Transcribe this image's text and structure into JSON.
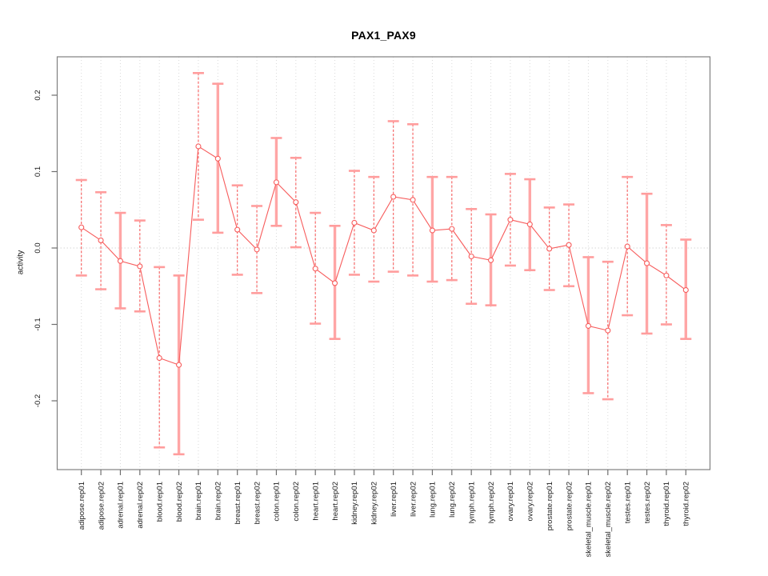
{
  "chart_data": {
    "type": "line",
    "subtype": "point-estimates-with-error-bars",
    "title": "PAX1_PAX9",
    "xlabel": "",
    "ylabel": "activity",
    "ylim": [
      -0.29,
      0.25
    ],
    "grid": "vertical dotted gridline at every category; horizontal dotted line at 0 only",
    "legend": "none",
    "yticks": [
      {
        "value": 0.2,
        "label": "0.2"
      },
      {
        "value": 0.1,
        "label": "0.1"
      },
      {
        "value": 0.0,
        "label": "0.0"
      },
      {
        "value": -0.1,
        "label": "-0.1"
      },
      {
        "value": -0.2,
        "label": "-0.2"
      }
    ],
    "categories": [
      "adipose.rep01",
      "adipose.rep02",
      "adrenal.rep01",
      "adrenal.rep02",
      "blood.rep01",
      "blood.rep02",
      "brain.rep01",
      "brain.rep02",
      "breast.rep01",
      "breast.rep02",
      "colon.rep01",
      "colon.rep02",
      "heart.rep01",
      "heart.rep02",
      "kidney.rep01",
      "kidney.rep02",
      "liver.rep01",
      "liver.rep02",
      "lung.rep01",
      "lung.rep02",
      "lymph.rep01",
      "lymph.rep02",
      "ovary.rep01",
      "ovary.rep02",
      "prostate.rep01",
      "prostate.rep02",
      "skeletal_muscle.rep01",
      "skeletal_muscle.rep02",
      "testes.rep01",
      "testes.rep02",
      "thyroid.rep01",
      "thyroid.rep02"
    ],
    "points": [
      {
        "category": "adipose.rep01",
        "value": 0.027,
        "lower": -0.036,
        "upper": 0.089,
        "bar_style": "dashed"
      },
      {
        "category": "adipose.rep02",
        "value": 0.01,
        "lower": -0.054,
        "upper": 0.073,
        "bar_style": "dashed"
      },
      {
        "category": "adrenal.rep01",
        "value": -0.017,
        "lower": -0.079,
        "upper": 0.046,
        "bar_style": "solid"
      },
      {
        "category": "adrenal.rep02",
        "value": -0.024,
        "lower": -0.083,
        "upper": 0.036,
        "bar_style": "dashed"
      },
      {
        "category": "blood.rep01",
        "value": -0.144,
        "lower": -0.261,
        "upper": -0.025,
        "bar_style": "dashed"
      },
      {
        "category": "blood.rep02",
        "value": -0.153,
        "lower": -0.27,
        "upper": -0.036,
        "bar_style": "solid"
      },
      {
        "category": "brain.rep01",
        "value": 0.133,
        "lower": 0.037,
        "upper": 0.229,
        "bar_style": "dashed"
      },
      {
        "category": "brain.rep02",
        "value": 0.117,
        "lower": 0.02,
        "upper": 0.215,
        "bar_style": "solid"
      },
      {
        "category": "breast.rep01",
        "value": 0.024,
        "lower": -0.035,
        "upper": 0.082,
        "bar_style": "dashed"
      },
      {
        "category": "breast.rep02",
        "value": -0.002,
        "lower": -0.059,
        "upper": 0.055,
        "bar_style": "dashed"
      },
      {
        "category": "colon.rep01",
        "value": 0.086,
        "lower": 0.029,
        "upper": 0.144,
        "bar_style": "solid"
      },
      {
        "category": "colon.rep02",
        "value": 0.06,
        "lower": 0.001,
        "upper": 0.118,
        "bar_style": "dashed"
      },
      {
        "category": "heart.rep01",
        "value": -0.027,
        "lower": -0.099,
        "upper": 0.046,
        "bar_style": "dashed"
      },
      {
        "category": "heart.rep02",
        "value": -0.046,
        "lower": -0.119,
        "upper": 0.029,
        "bar_style": "solid"
      },
      {
        "category": "kidney.rep01",
        "value": 0.033,
        "lower": -0.035,
        "upper": 0.101,
        "bar_style": "dashed"
      },
      {
        "category": "kidney.rep02",
        "value": 0.023,
        "lower": -0.044,
        "upper": 0.093,
        "bar_style": "dashed"
      },
      {
        "category": "liver.rep01",
        "value": 0.067,
        "lower": -0.031,
        "upper": 0.166,
        "bar_style": "dashed"
      },
      {
        "category": "liver.rep02",
        "value": 0.063,
        "lower": -0.036,
        "upper": 0.162,
        "bar_style": "dashed"
      },
      {
        "category": "lung.rep01",
        "value": 0.023,
        "lower": -0.044,
        "upper": 0.093,
        "bar_style": "solid"
      },
      {
        "category": "lung.rep02",
        "value": 0.025,
        "lower": -0.042,
        "upper": 0.093,
        "bar_style": "dashed"
      },
      {
        "category": "lymph.rep01",
        "value": -0.011,
        "lower": -0.073,
        "upper": 0.051,
        "bar_style": "dashed"
      },
      {
        "category": "lymph.rep02",
        "value": -0.016,
        "lower": -0.075,
        "upper": 0.044,
        "bar_style": "solid"
      },
      {
        "category": "ovary.rep01",
        "value": 0.037,
        "lower": -0.023,
        "upper": 0.097,
        "bar_style": "dashed"
      },
      {
        "category": "ovary.rep02",
        "value": 0.031,
        "lower": -0.029,
        "upper": 0.09,
        "bar_style": "solid"
      },
      {
        "category": "prostate.rep01",
        "value": -0.001,
        "lower": -0.055,
        "upper": 0.053,
        "bar_style": "dashed"
      },
      {
        "category": "prostate.rep02",
        "value": 0.004,
        "lower": -0.05,
        "upper": 0.057,
        "bar_style": "dashed"
      },
      {
        "category": "skeletal_muscle.rep01",
        "value": -0.102,
        "lower": -0.19,
        "upper": -0.012,
        "bar_style": "solid"
      },
      {
        "category": "skeletal_muscle.rep02",
        "value": -0.108,
        "lower": -0.198,
        "upper": -0.018,
        "bar_style": "dashed"
      },
      {
        "category": "testes.rep01",
        "value": 0.002,
        "lower": -0.088,
        "upper": 0.093,
        "bar_style": "dashed"
      },
      {
        "category": "testes.rep02",
        "value": -0.02,
        "lower": -0.112,
        "upper": 0.071,
        "bar_style": "solid"
      },
      {
        "category": "thyroid.rep01",
        "value": -0.036,
        "lower": -0.1,
        "upper": 0.03,
        "bar_style": "dashed"
      },
      {
        "category": "thyroid.rep02",
        "value": -0.055,
        "lower": -0.119,
        "upper": 0.011,
        "bar_style": "solid"
      }
    ],
    "colors": {
      "series": "#f75c5c",
      "error_bar_solid": "#ffa6a6",
      "error_bar_cap": "#ff9d9d",
      "marker_fill": "#ffffff",
      "gridline": "#dadada",
      "zero_line": "#d6d6d6",
      "frame": "#808080",
      "tick": "#6e6e6e",
      "label_text": "#1a1a1a"
    }
  }
}
